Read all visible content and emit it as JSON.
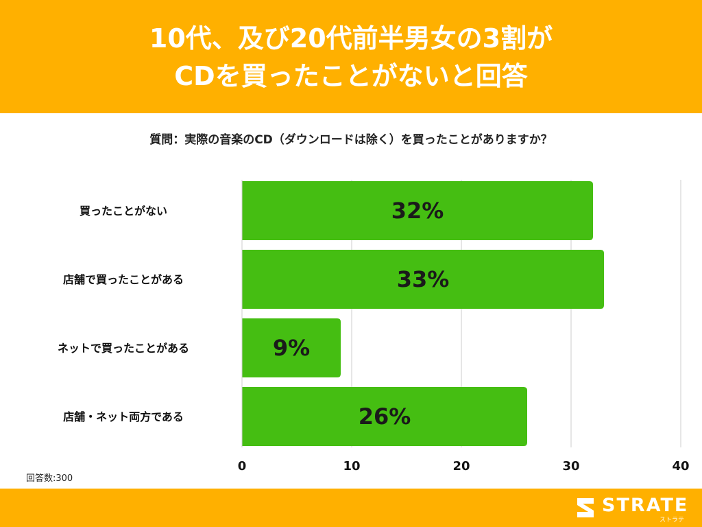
{
  "header": {
    "title_line1": "10代、及び20代前半男女の3割が",
    "title_line2": "CDを買ったことがないと回答",
    "background": "#FFB000"
  },
  "question": "質問：実際の音楽のCD（ダウンロードは除く）を買ったことがありますか？",
  "note": "回答数:300",
  "footer": {
    "logo_text": "STRATE",
    "logo_sub": "ストラテ",
    "background": "#FFB000"
  },
  "chart_data": {
    "type": "bar",
    "orientation": "horizontal",
    "categories": [
      "買ったことがない",
      "店舗で買ったことがある",
      "ネットで買ったことがある",
      "店舗・ネット両方である"
    ],
    "values": [
      32,
      33,
      9,
      26
    ],
    "value_labels": [
      "32%",
      "33%",
      "9%",
      "26%"
    ],
    "xlim": [
      0,
      40
    ],
    "xticks": [
      0,
      10,
      20,
      30,
      40
    ],
    "grid": true,
    "bar_color": "#45BE12"
  }
}
